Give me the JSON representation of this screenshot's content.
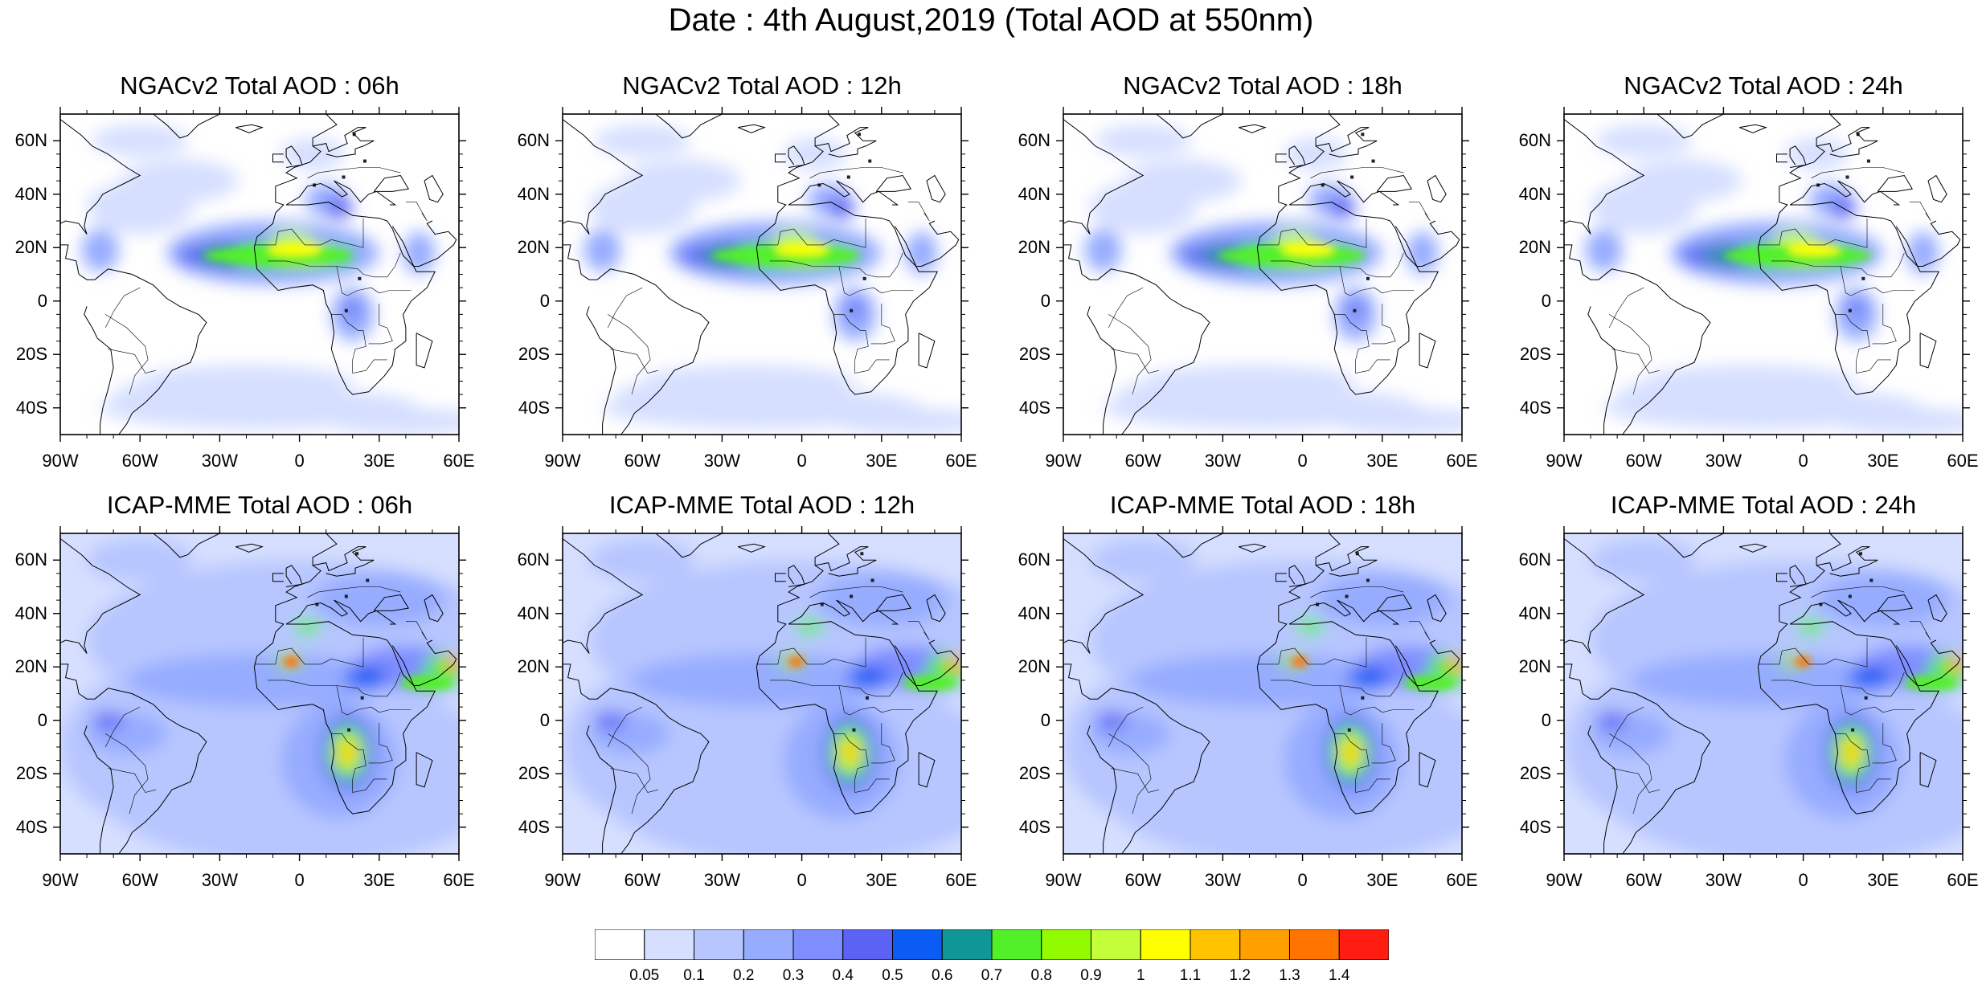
{
  "title": "Date : 4th August,2019 (Total AOD at 550nm)",
  "panels": [
    {
      "title": "NGACv2 Total AOD : 06h",
      "model": "NGACv2",
      "lead": "06h"
    },
    {
      "title": "NGACv2 Total AOD : 12h",
      "model": "NGACv2",
      "lead": "12h"
    },
    {
      "title": "NGACv2 Total AOD : 18h",
      "model": "NGACv2",
      "lead": "18h"
    },
    {
      "title": "NGACv2 Total AOD : 24h",
      "model": "NGACv2",
      "lead": "24h"
    },
    {
      "title": "ICAP-MME Total AOD : 06h",
      "model": "ICAP-MME",
      "lead": "06h"
    },
    {
      "title": "ICAP-MME Total AOD : 12h",
      "model": "ICAP-MME",
      "lead": "12h"
    },
    {
      "title": "ICAP-MME Total AOD : 18h",
      "model": "ICAP-MME",
      "lead": "18h"
    },
    {
      "title": "ICAP-MME Total AOD : 24h",
      "model": "ICAP-MME",
      "lead": "24h"
    }
  ],
  "lat_ticks": [
    "60N",
    "40N",
    "20N",
    "0",
    "20S",
    "40S"
  ],
  "lon_ticks": [
    "90W",
    "60W",
    "30W",
    "0",
    "30E",
    "60E"
  ],
  "extent": {
    "lon": [
      -90,
      60
    ],
    "lat": [
      -50,
      70
    ]
  },
  "colorbar": {
    "levels": [
      "0.05",
      "0.1",
      "0.2",
      "0.3",
      "0.4",
      "0.5",
      "0.6",
      "0.7",
      "0.8",
      "0.9",
      "1",
      "1.1",
      "1.2",
      "1.3",
      "1.4"
    ],
    "colors": [
      "#ffffff",
      "#d6dfff",
      "#b7c6ff",
      "#96acff",
      "#7f8eff",
      "#5c63f4",
      "#0a5cf5",
      "#0f9797",
      "#52f029",
      "#92fb00",
      "#c4fd39",
      "#ffff00",
      "#ffc300",
      "#ff9f00",
      "#ff7300",
      "#ff1c10"
    ]
  }
}
